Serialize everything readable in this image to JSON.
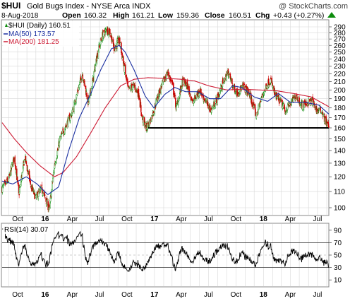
{
  "header": {
    "symbol": "$HUI",
    "name": "Gold Bugs Index - NYSE Arca INDX",
    "watermark": "@ StockCharts.com",
    "date": "8-Aug-2018",
    "open_label": "Open",
    "open": "160.32",
    "high_label": "High",
    "high": "161.21",
    "low_label": "Low",
    "low": "159.36",
    "close_label": "Close",
    "close": "160.51",
    "chg_label": "Chg",
    "chg": "+0.43 (+0.27%)",
    "chg_icon": "triangle-up-icon"
  },
  "legend": {
    "price": "$HUI (Daily) 160.51",
    "ma50": "MA(50) 173.57",
    "ma200": "MA(200) 181.25",
    "rsi": "RSI(14) 30.07"
  },
  "colors": {
    "up": "#0c8c0c",
    "down": "#cc0000",
    "ma50": "#1a2fa0",
    "ma200": "#cc1a33",
    "rsi": "#000000",
    "grid": "#d8d8d8"
  },
  "chart_data": [
    {
      "type": "candlestick",
      "title": "$HUI Gold Bugs Index - NYSE Arca INDX",
      "x_tick_labels": [
        "Oct",
        "16",
        "Apr",
        "Jul",
        "Oct",
        "17",
        "Apr",
        "Jul",
        "Oct",
        "18",
        "Apr",
        "Jul"
      ],
      "y_ticks": [
        100,
        110,
        120,
        130,
        140,
        150,
        160,
        170,
        180,
        190,
        200,
        210,
        220,
        230,
        240,
        250,
        260,
        270,
        280,
        290
      ],
      "ylim": [
        95,
        295
      ],
      "y_scale": "log",
      "price_keypoints": [
        [
          "2015-08-10",
          112
        ],
        [
          "2015-09-01",
          118
        ],
        [
          "2015-09-20",
          135
        ],
        [
          "2015-10-05",
          108
        ],
        [
          "2015-10-25",
          135
        ],
        [
          "2015-11-15",
          113
        ],
        [
          "2015-12-01",
          106
        ],
        [
          "2015-12-20",
          112
        ],
        [
          "2016-01-15",
          99
        ],
        [
          "2016-02-01",
          128
        ],
        [
          "2016-02-20",
          150
        ],
        [
          "2016-03-10",
          162
        ],
        [
          "2016-04-01",
          175
        ],
        [
          "2016-04-20",
          200
        ],
        [
          "2016-05-05",
          220
        ],
        [
          "2016-05-25",
          185
        ],
        [
          "2016-06-10",
          215
        ],
        [
          "2016-06-25",
          250
        ],
        [
          "2016-07-10",
          275
        ],
        [
          "2016-07-25",
          285
        ],
        [
          "2016-08-05",
          282
        ],
        [
          "2016-08-20",
          255
        ],
        [
          "2016-09-05",
          270
        ],
        [
          "2016-09-20",
          232
        ],
        [
          "2016-10-05",
          200
        ],
        [
          "2016-10-25",
          205
        ],
        [
          "2016-11-10",
          195
        ],
        [
          "2016-11-20",
          170
        ],
        [
          "2016-12-05",
          160
        ],
        [
          "2016-12-20",
          168
        ],
        [
          "2017-01-10",
          190
        ],
        [
          "2017-01-25",
          205
        ],
        [
          "2017-02-15",
          222
        ],
        [
          "2017-03-01",
          208
        ],
        [
          "2017-03-15",
          180
        ],
        [
          "2017-04-05",
          210
        ],
        [
          "2017-04-20",
          206
        ],
        [
          "2017-05-10",
          186
        ],
        [
          "2017-06-01",
          200
        ],
        [
          "2017-06-20",
          188
        ],
        [
          "2017-07-10",
          178
        ],
        [
          "2017-08-01",
          192
        ],
        [
          "2017-08-20",
          210
        ],
        [
          "2017-09-05",
          222
        ],
        [
          "2017-09-20",
          205
        ],
        [
          "2017-10-05",
          197
        ],
        [
          "2017-10-25",
          204
        ],
        [
          "2017-11-15",
          195
        ],
        [
          "2017-12-08",
          172
        ],
        [
          "2017-12-25",
          190
        ],
        [
          "2018-01-10",
          205
        ],
        [
          "2018-01-25",
          212
        ],
        [
          "2018-02-10",
          193
        ],
        [
          "2018-02-25",
          188
        ],
        [
          "2018-03-15",
          177
        ],
        [
          "2018-04-05",
          186
        ],
        [
          "2018-04-20",
          194
        ],
        [
          "2018-05-10",
          183
        ],
        [
          "2018-05-30",
          186
        ],
        [
          "2018-06-15",
          187
        ],
        [
          "2018-06-30",
          177
        ],
        [
          "2018-07-15",
          178
        ],
        [
          "2018-07-25",
          168
        ],
        [
          "2018-08-08",
          160.51
        ]
      ],
      "ma50_keypoints": [
        [
          "2015-08-10",
          117
        ],
        [
          "2015-09-15",
          115
        ],
        [
          "2015-10-30",
          120
        ],
        [
          "2015-12-05",
          115
        ],
        [
          "2016-01-10",
          108
        ],
        [
          "2016-02-15",
          113
        ],
        [
          "2016-03-20",
          140
        ],
        [
          "2016-04-25",
          170
        ],
        [
          "2016-06-01",
          195
        ],
        [
          "2016-07-05",
          225
        ],
        [
          "2016-08-10",
          255
        ],
        [
          "2016-09-05",
          260
        ],
        [
          "2016-09-25",
          250
        ],
        [
          "2016-10-25",
          225
        ],
        [
          "2016-12-01",
          193
        ],
        [
          "2016-12-30",
          180
        ],
        [
          "2017-02-05",
          195
        ],
        [
          "2017-03-10",
          203
        ],
        [
          "2017-04-15",
          198
        ],
        [
          "2017-05-25",
          198
        ],
        [
          "2017-07-05",
          190
        ],
        [
          "2017-08-10",
          190
        ],
        [
          "2017-09-20",
          205
        ],
        [
          "2017-10-20",
          203
        ],
        [
          "2017-12-01",
          192
        ],
        [
          "2018-01-15",
          187
        ],
        [
          "2018-02-20",
          196
        ],
        [
          "2018-04-01",
          186
        ],
        [
          "2018-05-20",
          186
        ],
        [
          "2018-07-05",
          183
        ],
        [
          "2018-08-08",
          173.57
        ]
      ],
      "ma200_keypoints": [
        [
          "2015-08-10",
          165
        ],
        [
          "2015-09-20",
          150
        ],
        [
          "2015-11-01",
          138
        ],
        [
          "2015-12-15",
          128
        ],
        [
          "2016-02-01",
          120
        ],
        [
          "2016-03-01",
          123
        ],
        [
          "2016-04-15",
          135
        ],
        [
          "2016-06-01",
          155
        ],
        [
          "2016-07-20",
          180
        ],
        [
          "2016-09-10",
          205
        ],
        [
          "2016-10-25",
          213
        ],
        [
          "2016-12-10",
          215
        ],
        [
          "2017-02-15",
          214
        ],
        [
          "2017-04-01",
          213
        ],
        [
          "2017-05-15",
          211
        ],
        [
          "2017-07-01",
          205
        ],
        [
          "2017-09-01",
          200
        ],
        [
          "2017-10-20",
          201
        ],
        [
          "2017-12-20",
          200
        ],
        [
          "2018-02-15",
          199
        ],
        [
          "2018-04-10",
          196
        ],
        [
          "2018-06-10",
          192
        ],
        [
          "2018-08-08",
          181.25
        ]
      ],
      "support_line": {
        "value": 160,
        "from": "2016-12-08",
        "to": "2018-08-08"
      }
    },
    {
      "type": "line",
      "title": "RSI(14) 30.07",
      "x_tick_labels": [
        "Oct",
        "16",
        "Apr",
        "Jul",
        "Oct",
        "17",
        "Apr",
        "Jul",
        "Oct",
        "18",
        "Apr",
        "Jul"
      ],
      "y_ticks": [
        10,
        30,
        50,
        70,
        90
      ],
      "ylim": [
        0,
        100
      ],
      "reference_lines": [
        30,
        70
      ],
      "last_value": 30.07
    }
  ]
}
